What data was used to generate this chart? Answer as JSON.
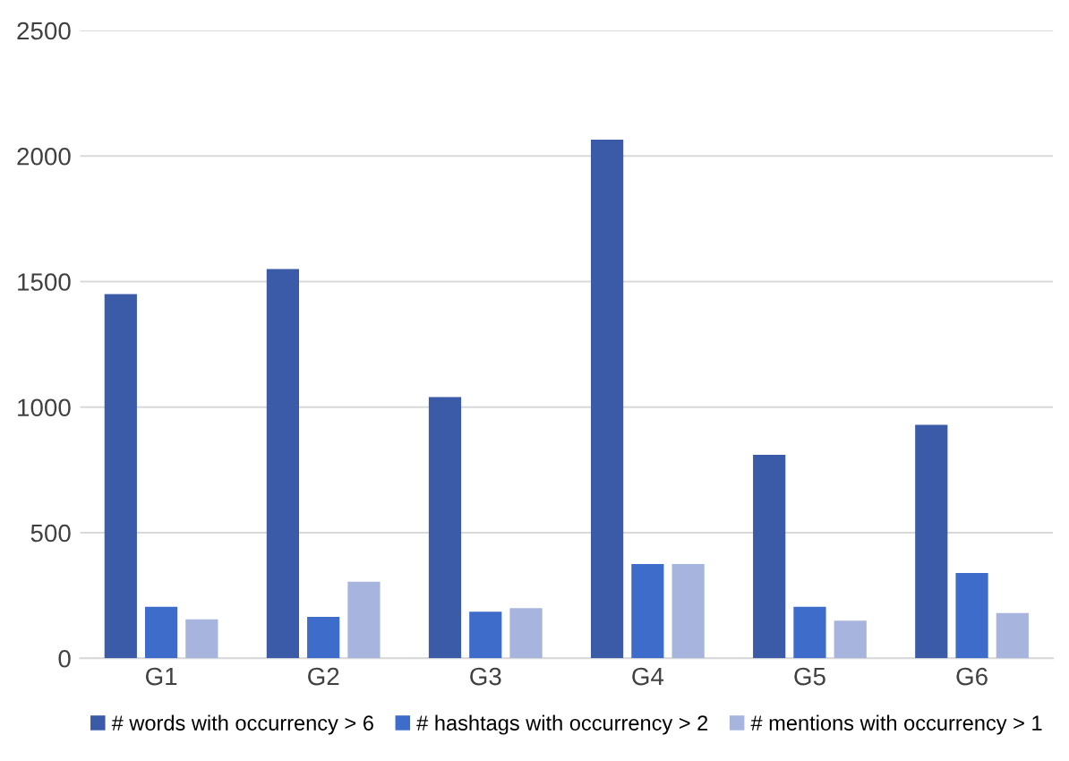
{
  "chart_data": {
    "type": "bar",
    "categories": [
      "G1",
      "G2",
      "G3",
      "G4",
      "G5",
      "G6"
    ],
    "series": [
      {
        "name": "# words with occurrency > 6",
        "color": "#3b5ba9",
        "values": [
          1450,
          1550,
          1040,
          2065,
          810,
          930
        ]
      },
      {
        "name": "# hashtags with occurrency > 2",
        "color": "#3e6ccb",
        "values": [
          205,
          165,
          185,
          375,
          205,
          340
        ]
      },
      {
        "name": "# mentions with occurrency > 1",
        "color": "#a7b5de",
        "values": [
          155,
          305,
          200,
          375,
          150,
          180
        ]
      }
    ],
    "ylim": [
      0,
      2500
    ],
    "yticks": [
      0,
      500,
      1000,
      1500,
      2000,
      2500
    ],
    "grid": "y",
    "legend": "bottom"
  }
}
